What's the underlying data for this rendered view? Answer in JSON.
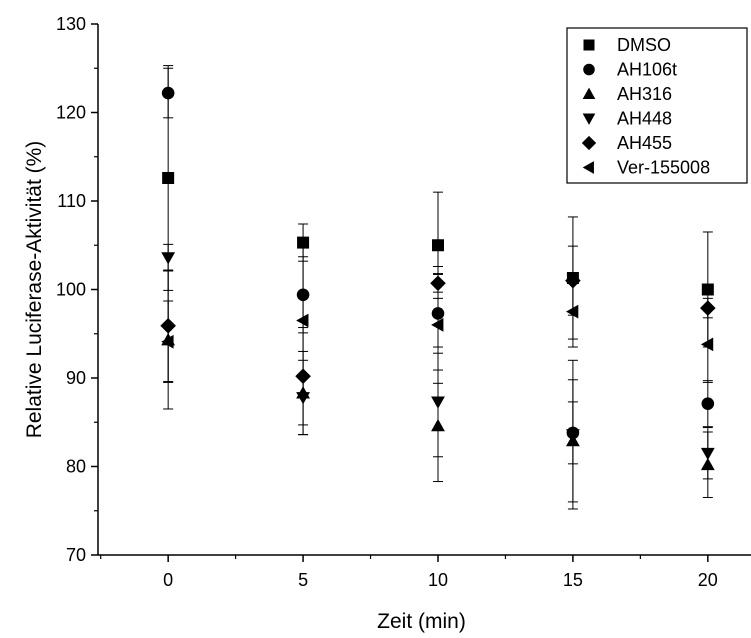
{
  "chart_data": {
    "type": "scatter",
    "xlabel": "Zeit (min)",
    "ylabel": "Relative Luciferase-Aktivität (%)",
    "xlim": [
      -2.6,
      21.6
    ],
    "ylim": [
      70,
      130
    ],
    "x_ticks": [
      0,
      5,
      10,
      15,
      20
    ],
    "x_tick_labels": [
      "0",
      "5",
      "10",
      "15",
      "20"
    ],
    "y_ticks": [
      70,
      80,
      90,
      100,
      110,
      120,
      130
    ],
    "y_tick_labels": [
      "70",
      "80",
      "90",
      "100",
      "110",
      "120",
      "130"
    ],
    "legend_position": "top-right",
    "grid": false,
    "series": [
      {
        "name": "DMSO",
        "marker": "square",
        "x": [
          0,
          5,
          10,
          15,
          20
        ],
        "y": [
          112.6,
          105.3,
          105.0,
          101.3,
          100.0
        ],
        "error": [
          12.7,
          2.1,
          6.0,
          6.9,
          6.5
        ]
      },
      {
        "name": "AH106t",
        "marker": "circle",
        "x": [
          0,
          5,
          10,
          15,
          20
        ],
        "y": [
          122.2,
          99.4,
          97.3,
          83.8,
          87.1
        ],
        "error": [
          2.8,
          4.3,
          4.5,
          3.5,
          2.6
        ]
      },
      {
        "name": "AH316",
        "marker": "triangle-up",
        "x": [
          0,
          5,
          10,
          15,
          20
        ],
        "y": [
          94.3,
          88.3,
          84.6,
          82.9,
          80.2
        ],
        "error": [
          7.8,
          4.7,
          6.3,
          6.9,
          3.7
        ]
      },
      {
        "name": "AH448",
        "marker": "triangle-down",
        "x": [
          0,
          5,
          10,
          15,
          20
        ],
        "y": [
          103.6,
          87.8,
          87.3,
          83.6,
          81.5
        ],
        "error": [
          1.5,
          4.2,
          6.2,
          8.4,
          2.9
        ]
      },
      {
        "name": "AH455",
        "marker": "diamond",
        "x": [
          0,
          5,
          10,
          15,
          20
        ],
        "y": [
          95.9,
          90.2,
          100.7,
          101.0,
          97.9
        ],
        "error": [
          6.3,
          5.5,
          1.0,
          3.9,
          1.1
        ]
      },
      {
        "name": "Ver-155008",
        "marker": "triangle-left",
        "x": [
          0,
          5,
          10,
          15,
          20
        ],
        "y": [
          94.1,
          96.5,
          96.0,
          97.5,
          93.8
        ],
        "error": [
          4.6,
          8.2,
          6.6,
          4.0,
          4.3
        ]
      }
    ]
  }
}
